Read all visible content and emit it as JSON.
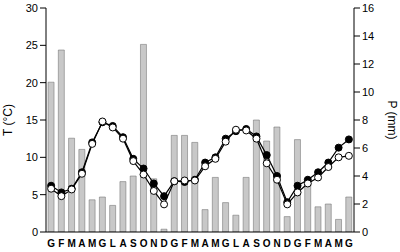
{
  "chart_data": {
    "type": "bar",
    "y_label": "T (°C)",
    "y2_label": "P (mm)",
    "categories": [
      "G",
      "F",
      "M",
      "A",
      "M",
      "G",
      "L",
      "A",
      "S",
      "O",
      "N",
      "D",
      "G",
      "F",
      "M",
      "A",
      "M",
      "G",
      "L",
      "A",
      "S",
      "O",
      "N",
      "D",
      "G",
      "F",
      "M",
      "A",
      "M",
      "G"
    ],
    "ylim": [
      0,
      30
    ],
    "yticks": [
      0,
      5,
      10,
      15,
      20,
      25,
      30
    ],
    "y2lim": [
      0,
      16
    ],
    "y2ticks": [
      0,
      2,
      4,
      6,
      8,
      10,
      12,
      14,
      16
    ],
    "series": [
      {
        "type": "bar",
        "axis": "y2",
        "color": "#c8c8c8",
        "values": [
          10.7,
          13.0,
          6.7,
          5.9,
          2.3,
          2.5,
          1.9,
          3.6,
          4.0,
          13.4,
          3.8,
          0.2,
          6.9,
          6.9,
          6.4,
          1.6,
          3.9,
          2.1,
          1.2,
          3.9,
          8.0,
          6.5,
          7.5,
          1.1,
          6.6,
          3.5,
          1.8,
          2.0,
          0.9,
          2.5
        ]
      },
      {
        "type": "line",
        "color": "#000000",
        "marker": "circle",
        "values": [
          6.2,
          5.3,
          5.8,
          8.0,
          12.0,
          14.7,
          14.2,
          12.7,
          9.8,
          8.5,
          6.5,
          4.8,
          6.8,
          6.7,
          7.0,
          9.3,
          10.0,
          12.5,
          13.5,
          13.8,
          12.8,
          10.3,
          7.5,
          4.0,
          6.2,
          7.0,
          8.0,
          9.3,
          11.3,
          12.4
        ]
      },
      {
        "type": "line",
        "color": "#000000",
        "marker": "open_circle",
        "values": [
          5.8,
          4.8,
          5.7,
          7.8,
          11.8,
          14.8,
          14.0,
          12.5,
          9.5,
          7.7,
          5.5,
          3.7,
          6.8,
          6.9,
          6.9,
          8.8,
          9.8,
          12.1,
          13.7,
          13.6,
          12.5,
          9.2,
          7.0,
          3.7,
          5.3,
          6.5,
          7.3,
          8.7,
          10.0,
          10.2
        ]
      }
    ]
  }
}
